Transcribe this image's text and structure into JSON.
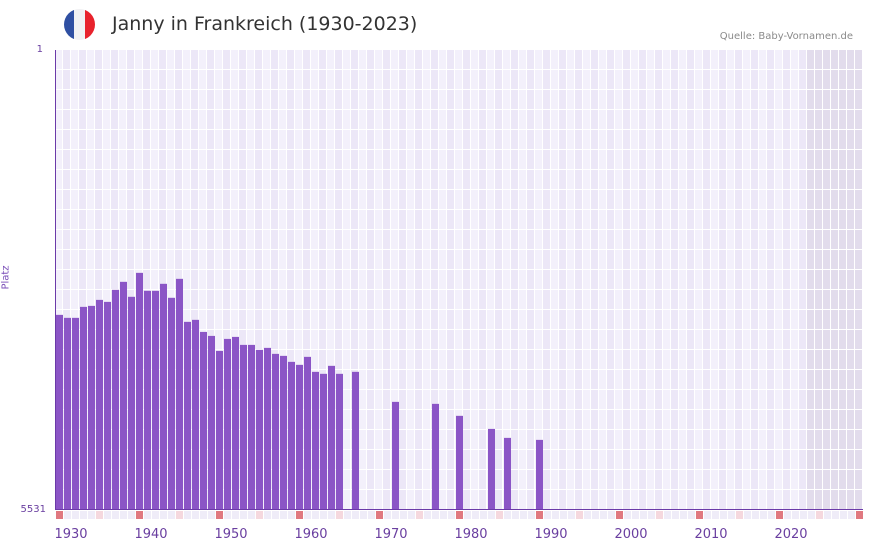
{
  "header": {
    "title": "Janny in Frankreich (1930-2023)",
    "source": "Quelle: Baby-Vornamen.de",
    "flag_colors": [
      "#2f4fa2",
      "#f1f1f3",
      "#e8222c"
    ]
  },
  "axes": {
    "y_top_label": "1",
    "y_bottom_label": "5531",
    "y_title": "Platz",
    "x_labels": [
      "1930",
      "1940",
      "1950",
      "1960",
      "1970",
      "1980",
      "1990",
      "2000",
      "2010",
      "2020"
    ]
  },
  "colors": {
    "bar": "#8b55c6",
    "grid_bg_a": "#f3f0fb",
    "grid_bg_b": "#ece7f7",
    "grid_line": "#ffffff",
    "future_bg": "#e2dcec",
    "decade_marker": "#e07880",
    "half_decade_marker": "#f5d8de",
    "strip_bg": "#efecf8"
  },
  "chart_data": {
    "type": "bar",
    "title": "Janny in Frankreich (1930-2023)",
    "xlabel": "",
    "ylabel": "Platz",
    "y_axis_inverted": true,
    "ylim": [
      1,
      5531
    ],
    "x_range": [
      1929,
      2029
    ],
    "shaded_region_from": 2023,
    "grid": true,
    "legend": null,
    "x": [
      1929,
      1930,
      1931,
      1932,
      1933,
      1934,
      1935,
      1936,
      1937,
      1938,
      1939,
      1940,
      1941,
      1942,
      1943,
      1944,
      1945,
      1946,
      1947,
      1948,
      1949,
      1950,
      1951,
      1952,
      1953,
      1954,
      1955,
      1956,
      1957,
      1958,
      1959,
      1960,
      1961,
      1962,
      1963,
      1964,
      1966,
      1971,
      1976,
      1979,
      1983,
      1985,
      1989
    ],
    "values": [
      3185,
      3221,
      3221,
      3089,
      3077,
      3005,
      3029,
      2884,
      2788,
      2968,
      2680,
      2896,
      2896,
      2812,
      2980,
      2752,
      3269,
      3245,
      3390,
      3438,
      3618,
      3474,
      3450,
      3546,
      3546,
      3606,
      3582,
      3654,
      3678,
      3750,
      3786,
      3690,
      3870,
      3894,
      3798,
      3894,
      3870,
      4231,
      4255,
      4399,
      4556,
      4664,
      4688
    ],
    "note": "Rank (Platz) per year; lower is more popular. Years without bars: not ranked."
  }
}
